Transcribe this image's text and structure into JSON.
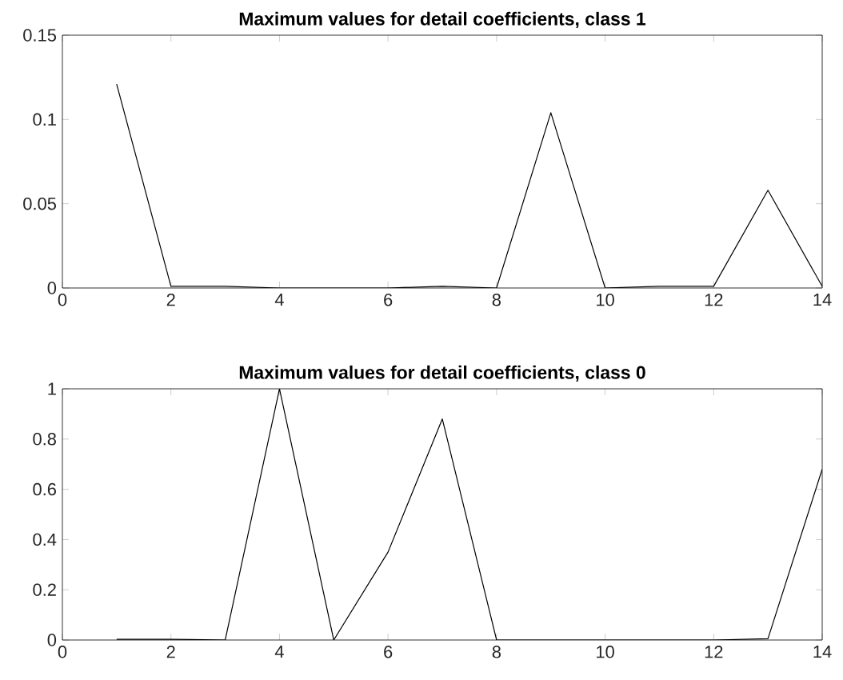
{
  "chart_data": [
    {
      "type": "line",
      "title": "Maximum values  for detail coefficients, class 1",
      "x": [
        1,
        2,
        3,
        4,
        5,
        6,
        7,
        8,
        9,
        10,
        11,
        12,
        13,
        14
      ],
      "series": [
        {
          "color": "#000000",
          "values": [
            0.121,
            0.001,
            0.001,
            0,
            0,
            0,
            0.001,
            0,
            0.104,
            0,
            0.001,
            0.001,
            0.058,
            0.001
          ]
        }
      ],
      "xlim": [
        0,
        14
      ],
      "ylim": [
        0,
        0.15
      ],
      "xticks": [
        0,
        2,
        4,
        6,
        8,
        10,
        12,
        14
      ],
      "yticks": [
        0,
        0.05,
        0.1,
        0.15
      ]
    },
    {
      "type": "line",
      "title": "Maximum values  for detail coefficients, class 0",
      "x": [
        1,
        2,
        3,
        4,
        5,
        6,
        7,
        8,
        9,
        10,
        11,
        12,
        13,
        14
      ],
      "series": [
        {
          "color": "#000000",
          "values": [
            0.003,
            0.003,
            0,
            1,
            0,
            0.35,
            0.88,
            0,
            0,
            0,
            0,
            0,
            0.005,
            0.68
          ]
        }
      ],
      "xlim": [
        0,
        14
      ],
      "ylim": [
        0,
        1
      ],
      "xticks": [
        0,
        2,
        4,
        6,
        8,
        10,
        12,
        14
      ],
      "yticks": [
        0,
        0.2,
        0.4,
        0.6,
        0.8,
        1
      ]
    }
  ]
}
